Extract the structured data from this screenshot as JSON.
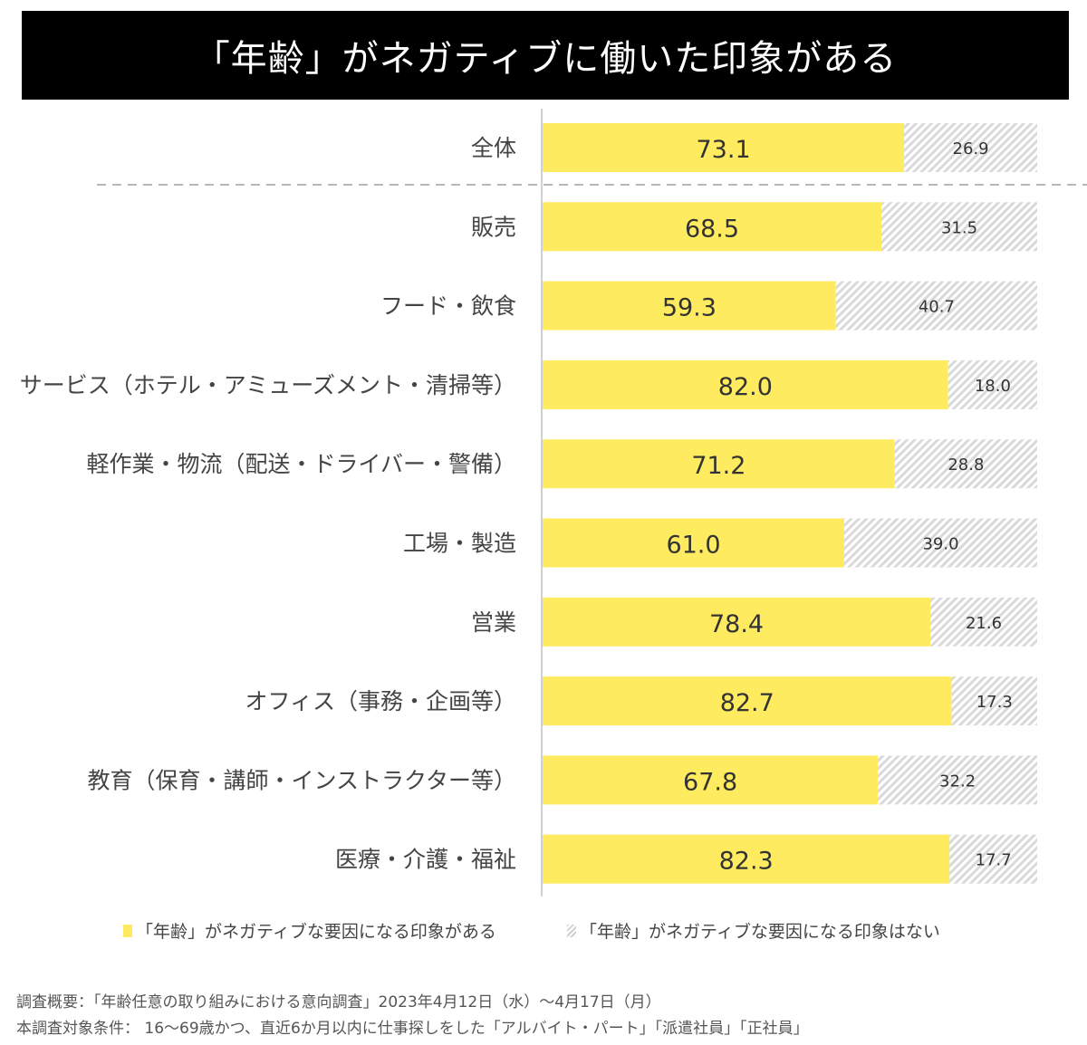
{
  "title": "「年齢」がネガティブに働いた印象がある",
  "chart_data": {
    "type": "bar",
    "orientation": "horizontal",
    "stacked": true,
    "title": "「年齢」がネガティブに働いた印象がある",
    "xlabel": "",
    "ylabel": "",
    "xlim": [
      0,
      100
    ],
    "grid": false,
    "categories": [
      "全体",
      "販売",
      "フード・飲食",
      "サービス（ホテル・アミューズメント・清掃等）",
      "軽作業・物流（配送・ドライバー・警備）",
      "工場・製造",
      "営業",
      "オフィス（事務・企画等）",
      "教育（保育・講師・インストラクター等）",
      "医療・介護・福祉"
    ],
    "series": [
      {
        "name": "「年齢」がネガティブな要因になる印象がある",
        "color": "#FFEB5F",
        "values": [
          73.1,
          68.5,
          59.3,
          82.0,
          71.2,
          61.0,
          78.4,
          82.7,
          67.8,
          82.3
        ],
        "labels": [
          "73.1",
          "68.5",
          "59.3",
          "82.0",
          "71.2",
          "61.0",
          "78.4",
          "82.7",
          "67.8",
          "82.3"
        ]
      },
      {
        "name": "「年齢」がネガティブな要因になる印象はない",
        "color": "#D9D9D9",
        "pattern": "diagonal-hatch",
        "values": [
          26.9,
          31.5,
          40.7,
          18.0,
          28.8,
          39.0,
          21.6,
          17.3,
          32.2,
          17.7
        ],
        "labels": [
          "26.9",
          "31.5",
          "40.7",
          "18.0",
          "28.8",
          "39.0",
          "21.6",
          "17.3",
          "32.2",
          "17.7"
        ]
      }
    ],
    "separator_after_index": 0,
    "legend_position": "bottom"
  },
  "legend": {
    "items": [
      {
        "label": "「年齢」がネガティブな要因になる印象がある"
      },
      {
        "label": "「年齢」がネガティブな要因になる印象はない"
      }
    ]
  },
  "footnotes": {
    "line1": "調査概要：「年齢任意の取り組みにおける意向調査」2023年4月12日（水）～4月17日（月）",
    "line2": "本調査対象条件： 16～69歳かつ、直近6か月以内に仕事探しをした「アルバイト・パート」「派遣社員」「正社員」"
  }
}
